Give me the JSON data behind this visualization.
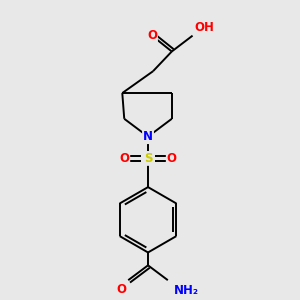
{
  "bg_color": "#e8e8e8",
  "bond_color": "#000000",
  "atom_colors": {
    "O": "#ff0000",
    "N": "#0000ff",
    "S": "#cccc00",
    "C": "#000000",
    "H": "#808080"
  },
  "font_size": 8.5,
  "lw": 1.4,
  "scale": 1.0
}
